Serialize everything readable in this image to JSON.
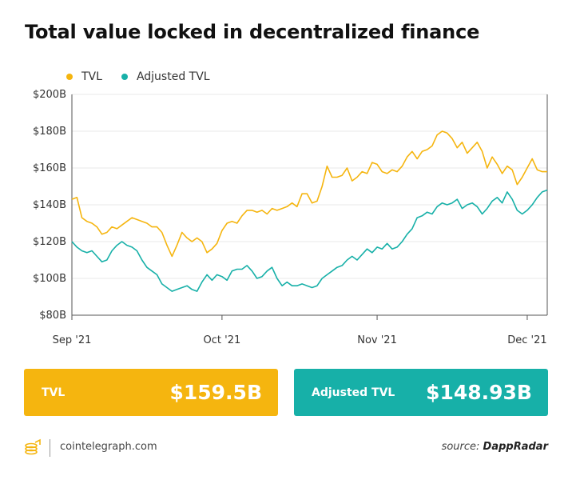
{
  "title": "Total value locked in decentralized finance",
  "colors": {
    "tvl": "#F5B50F",
    "adjusted": "#17B0A8",
    "grid": "#e9e9e9",
    "axis": "#555555"
  },
  "legend": [
    {
      "label": "TVL",
      "color": "#F5B50F"
    },
    {
      "label": "Adjusted TVL",
      "color": "#17B0A8"
    }
  ],
  "chart_data": {
    "type": "line",
    "x_start": "2021-09-01",
    "x_end": "2021-12-05",
    "ylim": [
      80,
      200
    ],
    "y_ticks": [
      80,
      100,
      120,
      140,
      160,
      180,
      200
    ],
    "y_tick_labels": [
      "$80B",
      "$100B",
      "$120B",
      "$140B",
      "$160B",
      "$180B",
      "$200B"
    ],
    "x_ticks": [
      {
        "date": "2021-09-01",
        "label": "Sep '21"
      },
      {
        "date": "2021-10-01",
        "label": "Oct '21"
      },
      {
        "date": "2021-11-01",
        "label": "Nov '21"
      },
      {
        "date": "2021-12-01",
        "label": "Dec '21"
      }
    ],
    "grid": "horizontal",
    "legend_position": "top-left",
    "series": [
      {
        "name": "TVL",
        "color": "#F5B50F",
        "points": [
          [
            "2021-09-01",
            143
          ],
          [
            "2021-09-02",
            144
          ],
          [
            "2021-09-03",
            133
          ],
          [
            "2021-09-04",
            131
          ],
          [
            "2021-09-05",
            130
          ],
          [
            "2021-09-06",
            128
          ],
          [
            "2021-09-07",
            124
          ],
          [
            "2021-09-08",
            125
          ],
          [
            "2021-09-09",
            128
          ],
          [
            "2021-09-10",
            127
          ],
          [
            "2021-09-11",
            129
          ],
          [
            "2021-09-12",
            131
          ],
          [
            "2021-09-13",
            133
          ],
          [
            "2021-09-14",
            132
          ],
          [
            "2021-09-15",
            131
          ],
          [
            "2021-09-16",
            130
          ],
          [
            "2021-09-17",
            128
          ],
          [
            "2021-09-18",
            128
          ],
          [
            "2021-09-19",
            125
          ],
          [
            "2021-09-20",
            118
          ],
          [
            "2021-09-21",
            112
          ],
          [
            "2021-09-22",
            118
          ],
          [
            "2021-09-23",
            125
          ],
          [
            "2021-09-24",
            122
          ],
          [
            "2021-09-25",
            120
          ],
          [
            "2021-09-26",
            122
          ],
          [
            "2021-09-27",
            120
          ],
          [
            "2021-09-28",
            114
          ],
          [
            "2021-09-29",
            116
          ],
          [
            "2021-09-30",
            119
          ],
          [
            "2021-10-01",
            126
          ],
          [
            "2021-10-02",
            130
          ],
          [
            "2021-10-03",
            131
          ],
          [
            "2021-10-04",
            130
          ],
          [
            "2021-10-05",
            134
          ],
          [
            "2021-10-06",
            137
          ],
          [
            "2021-10-07",
            137
          ],
          [
            "2021-10-08",
            136
          ],
          [
            "2021-10-09",
            137
          ],
          [
            "2021-10-10",
            135
          ],
          [
            "2021-10-11",
            138
          ],
          [
            "2021-10-12",
            137
          ],
          [
            "2021-10-13",
            138
          ],
          [
            "2021-10-14",
            139
          ],
          [
            "2021-10-15",
            141
          ],
          [
            "2021-10-16",
            139
          ],
          [
            "2021-10-17",
            146
          ],
          [
            "2021-10-18",
            146
          ],
          [
            "2021-10-19",
            141
          ],
          [
            "2021-10-20",
            142
          ],
          [
            "2021-10-21",
            150
          ],
          [
            "2021-10-22",
            161
          ],
          [
            "2021-10-23",
            155
          ],
          [
            "2021-10-24",
            155
          ],
          [
            "2021-10-25",
            156
          ],
          [
            "2021-10-26",
            160
          ],
          [
            "2021-10-27",
            153
          ],
          [
            "2021-10-28",
            155
          ],
          [
            "2021-10-29",
            158
          ],
          [
            "2021-10-30",
            157
          ],
          [
            "2021-10-31",
            163
          ],
          [
            "2021-11-01",
            162
          ],
          [
            "2021-11-02",
            158
          ],
          [
            "2021-11-03",
            157
          ],
          [
            "2021-11-04",
            159
          ],
          [
            "2021-11-05",
            158
          ],
          [
            "2021-11-06",
            161
          ],
          [
            "2021-11-07",
            166
          ],
          [
            "2021-11-08",
            169
          ],
          [
            "2021-11-09",
            165
          ],
          [
            "2021-11-10",
            169
          ],
          [
            "2021-11-11",
            170
          ],
          [
            "2021-11-12",
            172
          ],
          [
            "2021-11-13",
            178
          ],
          [
            "2021-11-14",
            180
          ],
          [
            "2021-11-15",
            179
          ],
          [
            "2021-11-16",
            176
          ],
          [
            "2021-11-17",
            171
          ],
          [
            "2021-11-18",
            174
          ],
          [
            "2021-11-19",
            168
          ],
          [
            "2021-11-20",
            171
          ],
          [
            "2021-11-21",
            174
          ],
          [
            "2021-11-22",
            169
          ],
          [
            "2021-11-23",
            160
          ],
          [
            "2021-11-24",
            166
          ],
          [
            "2021-11-25",
            162
          ],
          [
            "2021-11-26",
            157
          ],
          [
            "2021-11-27",
            161
          ],
          [
            "2021-11-28",
            159
          ],
          [
            "2021-11-29",
            151
          ],
          [
            "2021-11-30",
            155
          ],
          [
            "2021-12-01",
            160
          ],
          [
            "2021-12-02",
            165
          ],
          [
            "2021-12-03",
            159
          ],
          [
            "2021-12-04",
            158
          ],
          [
            "2021-12-05",
            158
          ]
        ]
      },
      {
        "name": "Adjusted TVL",
        "color": "#17B0A8",
        "points": [
          [
            "2021-09-01",
            120
          ],
          [
            "2021-09-02",
            117
          ],
          [
            "2021-09-03",
            115
          ],
          [
            "2021-09-04",
            114
          ],
          [
            "2021-09-05",
            115
          ],
          [
            "2021-09-06",
            112
          ],
          [
            "2021-09-07",
            109
          ],
          [
            "2021-09-08",
            110
          ],
          [
            "2021-09-09",
            115
          ],
          [
            "2021-09-10",
            118
          ],
          [
            "2021-09-11",
            120
          ],
          [
            "2021-09-12",
            118
          ],
          [
            "2021-09-13",
            117
          ],
          [
            "2021-09-14",
            115
          ],
          [
            "2021-09-15",
            110
          ],
          [
            "2021-09-16",
            106
          ],
          [
            "2021-09-17",
            104
          ],
          [
            "2021-09-18",
            102
          ],
          [
            "2021-09-19",
            97
          ],
          [
            "2021-09-20",
            95
          ],
          [
            "2021-09-21",
            93
          ],
          [
            "2021-09-22",
            94
          ],
          [
            "2021-09-23",
            95
          ],
          [
            "2021-09-24",
            96
          ],
          [
            "2021-09-25",
            94
          ],
          [
            "2021-09-26",
            93
          ],
          [
            "2021-09-27",
            98
          ],
          [
            "2021-09-28",
            102
          ],
          [
            "2021-09-29",
            99
          ],
          [
            "2021-09-30",
            102
          ],
          [
            "2021-10-01",
            101
          ],
          [
            "2021-10-02",
            99
          ],
          [
            "2021-10-03",
            104
          ],
          [
            "2021-10-04",
            105
          ],
          [
            "2021-10-05",
            105
          ],
          [
            "2021-10-06",
            107
          ],
          [
            "2021-10-07",
            104
          ],
          [
            "2021-10-08",
            100
          ],
          [
            "2021-10-09",
            101
          ],
          [
            "2021-10-10",
            104
          ],
          [
            "2021-10-11",
            106
          ],
          [
            "2021-10-12",
            100
          ],
          [
            "2021-10-13",
            96
          ],
          [
            "2021-10-14",
            98
          ],
          [
            "2021-10-15",
            96
          ],
          [
            "2021-10-16",
            96
          ],
          [
            "2021-10-17",
            97
          ],
          [
            "2021-10-18",
            96
          ],
          [
            "2021-10-19",
            95
          ],
          [
            "2021-10-20",
            96
          ],
          [
            "2021-10-21",
            100
          ],
          [
            "2021-10-22",
            102
          ],
          [
            "2021-10-23",
            104
          ],
          [
            "2021-10-24",
            106
          ],
          [
            "2021-10-25",
            107
          ],
          [
            "2021-10-26",
            110
          ],
          [
            "2021-10-27",
            112
          ],
          [
            "2021-10-28",
            110
          ],
          [
            "2021-10-29",
            113
          ],
          [
            "2021-10-30",
            116
          ],
          [
            "2021-10-31",
            114
          ],
          [
            "2021-11-01",
            117
          ],
          [
            "2021-11-02",
            116
          ],
          [
            "2021-11-03",
            119
          ],
          [
            "2021-11-04",
            116
          ],
          [
            "2021-11-05",
            117
          ],
          [
            "2021-11-06",
            120
          ],
          [
            "2021-11-07",
            124
          ],
          [
            "2021-11-08",
            127
          ],
          [
            "2021-11-09",
            133
          ],
          [
            "2021-11-10",
            134
          ],
          [
            "2021-11-11",
            136
          ],
          [
            "2021-11-12",
            135
          ],
          [
            "2021-11-13",
            139
          ],
          [
            "2021-11-14",
            141
          ],
          [
            "2021-11-15",
            140
          ],
          [
            "2021-11-16",
            141
          ],
          [
            "2021-11-17",
            143
          ],
          [
            "2021-11-18",
            138
          ],
          [
            "2021-11-19",
            140
          ],
          [
            "2021-11-20",
            141
          ],
          [
            "2021-11-21",
            139
          ],
          [
            "2021-11-22",
            135
          ],
          [
            "2021-11-23",
            138
          ],
          [
            "2021-11-24",
            142
          ],
          [
            "2021-11-25",
            144
          ],
          [
            "2021-11-26",
            141
          ],
          [
            "2021-11-27",
            147
          ],
          [
            "2021-11-28",
            143
          ],
          [
            "2021-11-29",
            137
          ],
          [
            "2021-11-30",
            135
          ],
          [
            "2021-12-01",
            137
          ],
          [
            "2021-12-02",
            140
          ],
          [
            "2021-12-03",
            144
          ],
          [
            "2021-12-04",
            147
          ],
          [
            "2021-12-05",
            148
          ]
        ]
      }
    ]
  },
  "cards": [
    {
      "label": "TVL",
      "value": "$159.5B",
      "color": "#F5B50F"
    },
    {
      "label": "Adjusted TVL",
      "value": "$148.93B",
      "color": "#17B0A8"
    }
  ],
  "footer": {
    "site": "cointelegraph.com",
    "source_prefix": "source: ",
    "source_name": "DappRadar"
  }
}
